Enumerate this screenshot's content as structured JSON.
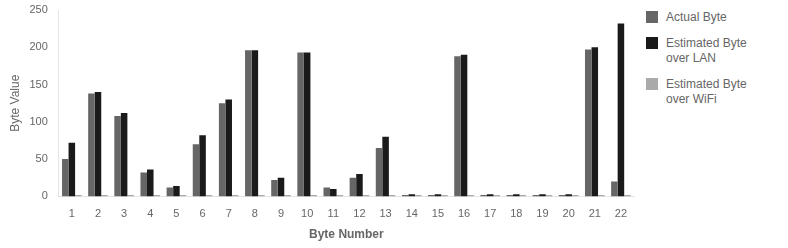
{
  "chart_data": {
    "type": "bar",
    "xlabel": "Byte Number",
    "ylabel": "Byte Value",
    "categories": [
      "1",
      "2",
      "3",
      "4",
      "5",
      "6",
      "7",
      "8",
      "9",
      "10",
      "11",
      "12",
      "13",
      "14",
      "15",
      "16",
      "17",
      "18",
      "19",
      "20",
      "21",
      "22"
    ],
    "series": [
      {
        "name": "Actual Byte",
        "color": "#666666",
        "values": [
          50,
          138,
          108,
          32,
          12,
          70,
          125,
          196,
          22,
          193,
          12,
          25,
          65,
          2,
          2,
          188,
          2,
          2,
          2,
          2,
          197,
          20
        ]
      },
      {
        "name": "Estimated Byte\nover LAN",
        "color": "#1a1a1a",
        "values": [
          72,
          140,
          112,
          36,
          14,
          82,
          130,
          196,
          25,
          193,
          10,
          30,
          80,
          3,
          3,
          190,
          3,
          3,
          3,
          3,
          200,
          232
        ]
      },
      {
        "name": "Estimated Byte\nover WiFi",
        "color": "#aaaaaa",
        "values": [
          2,
          2,
          2,
          2,
          2,
          2,
          2,
          2,
          2,
          2,
          2,
          2,
          2,
          2,
          2,
          2,
          2,
          2,
          2,
          2,
          2,
          2
        ]
      }
    ],
    "ylim": [
      0,
      250
    ],
    "yticks": [
      0,
      50,
      100,
      150,
      200,
      250
    ],
    "grid": false,
    "legend": "right"
  }
}
